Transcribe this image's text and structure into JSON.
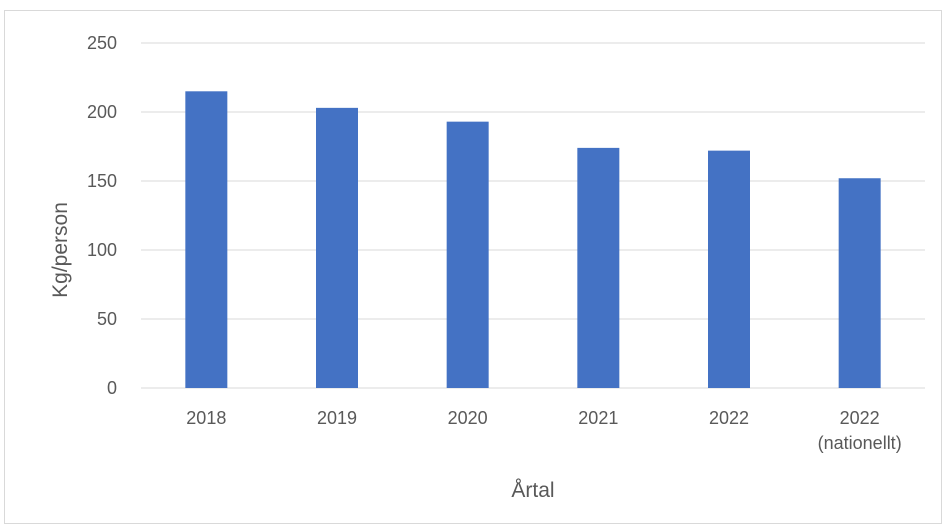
{
  "chart_data": {
    "type": "bar",
    "title": "",
    "xlabel": "Årtal",
    "ylabel": "Kg/person",
    "categories": [
      [
        "2018"
      ],
      [
        "2019"
      ],
      [
        "2020"
      ],
      [
        "2021"
      ],
      [
        "2022"
      ],
      [
        "2022",
        "(nationellt)"
      ]
    ],
    "values": [
      215,
      203,
      193,
      174,
      172,
      152
    ],
    "ylim": [
      0,
      250
    ],
    "yticks": [
      0,
      50,
      100,
      150,
      200,
      250
    ],
    "grid": true,
    "legend": "none",
    "bar_color": "#4472C4",
    "grid_color": "#d9d9d9",
    "text_color": "#595959"
  }
}
